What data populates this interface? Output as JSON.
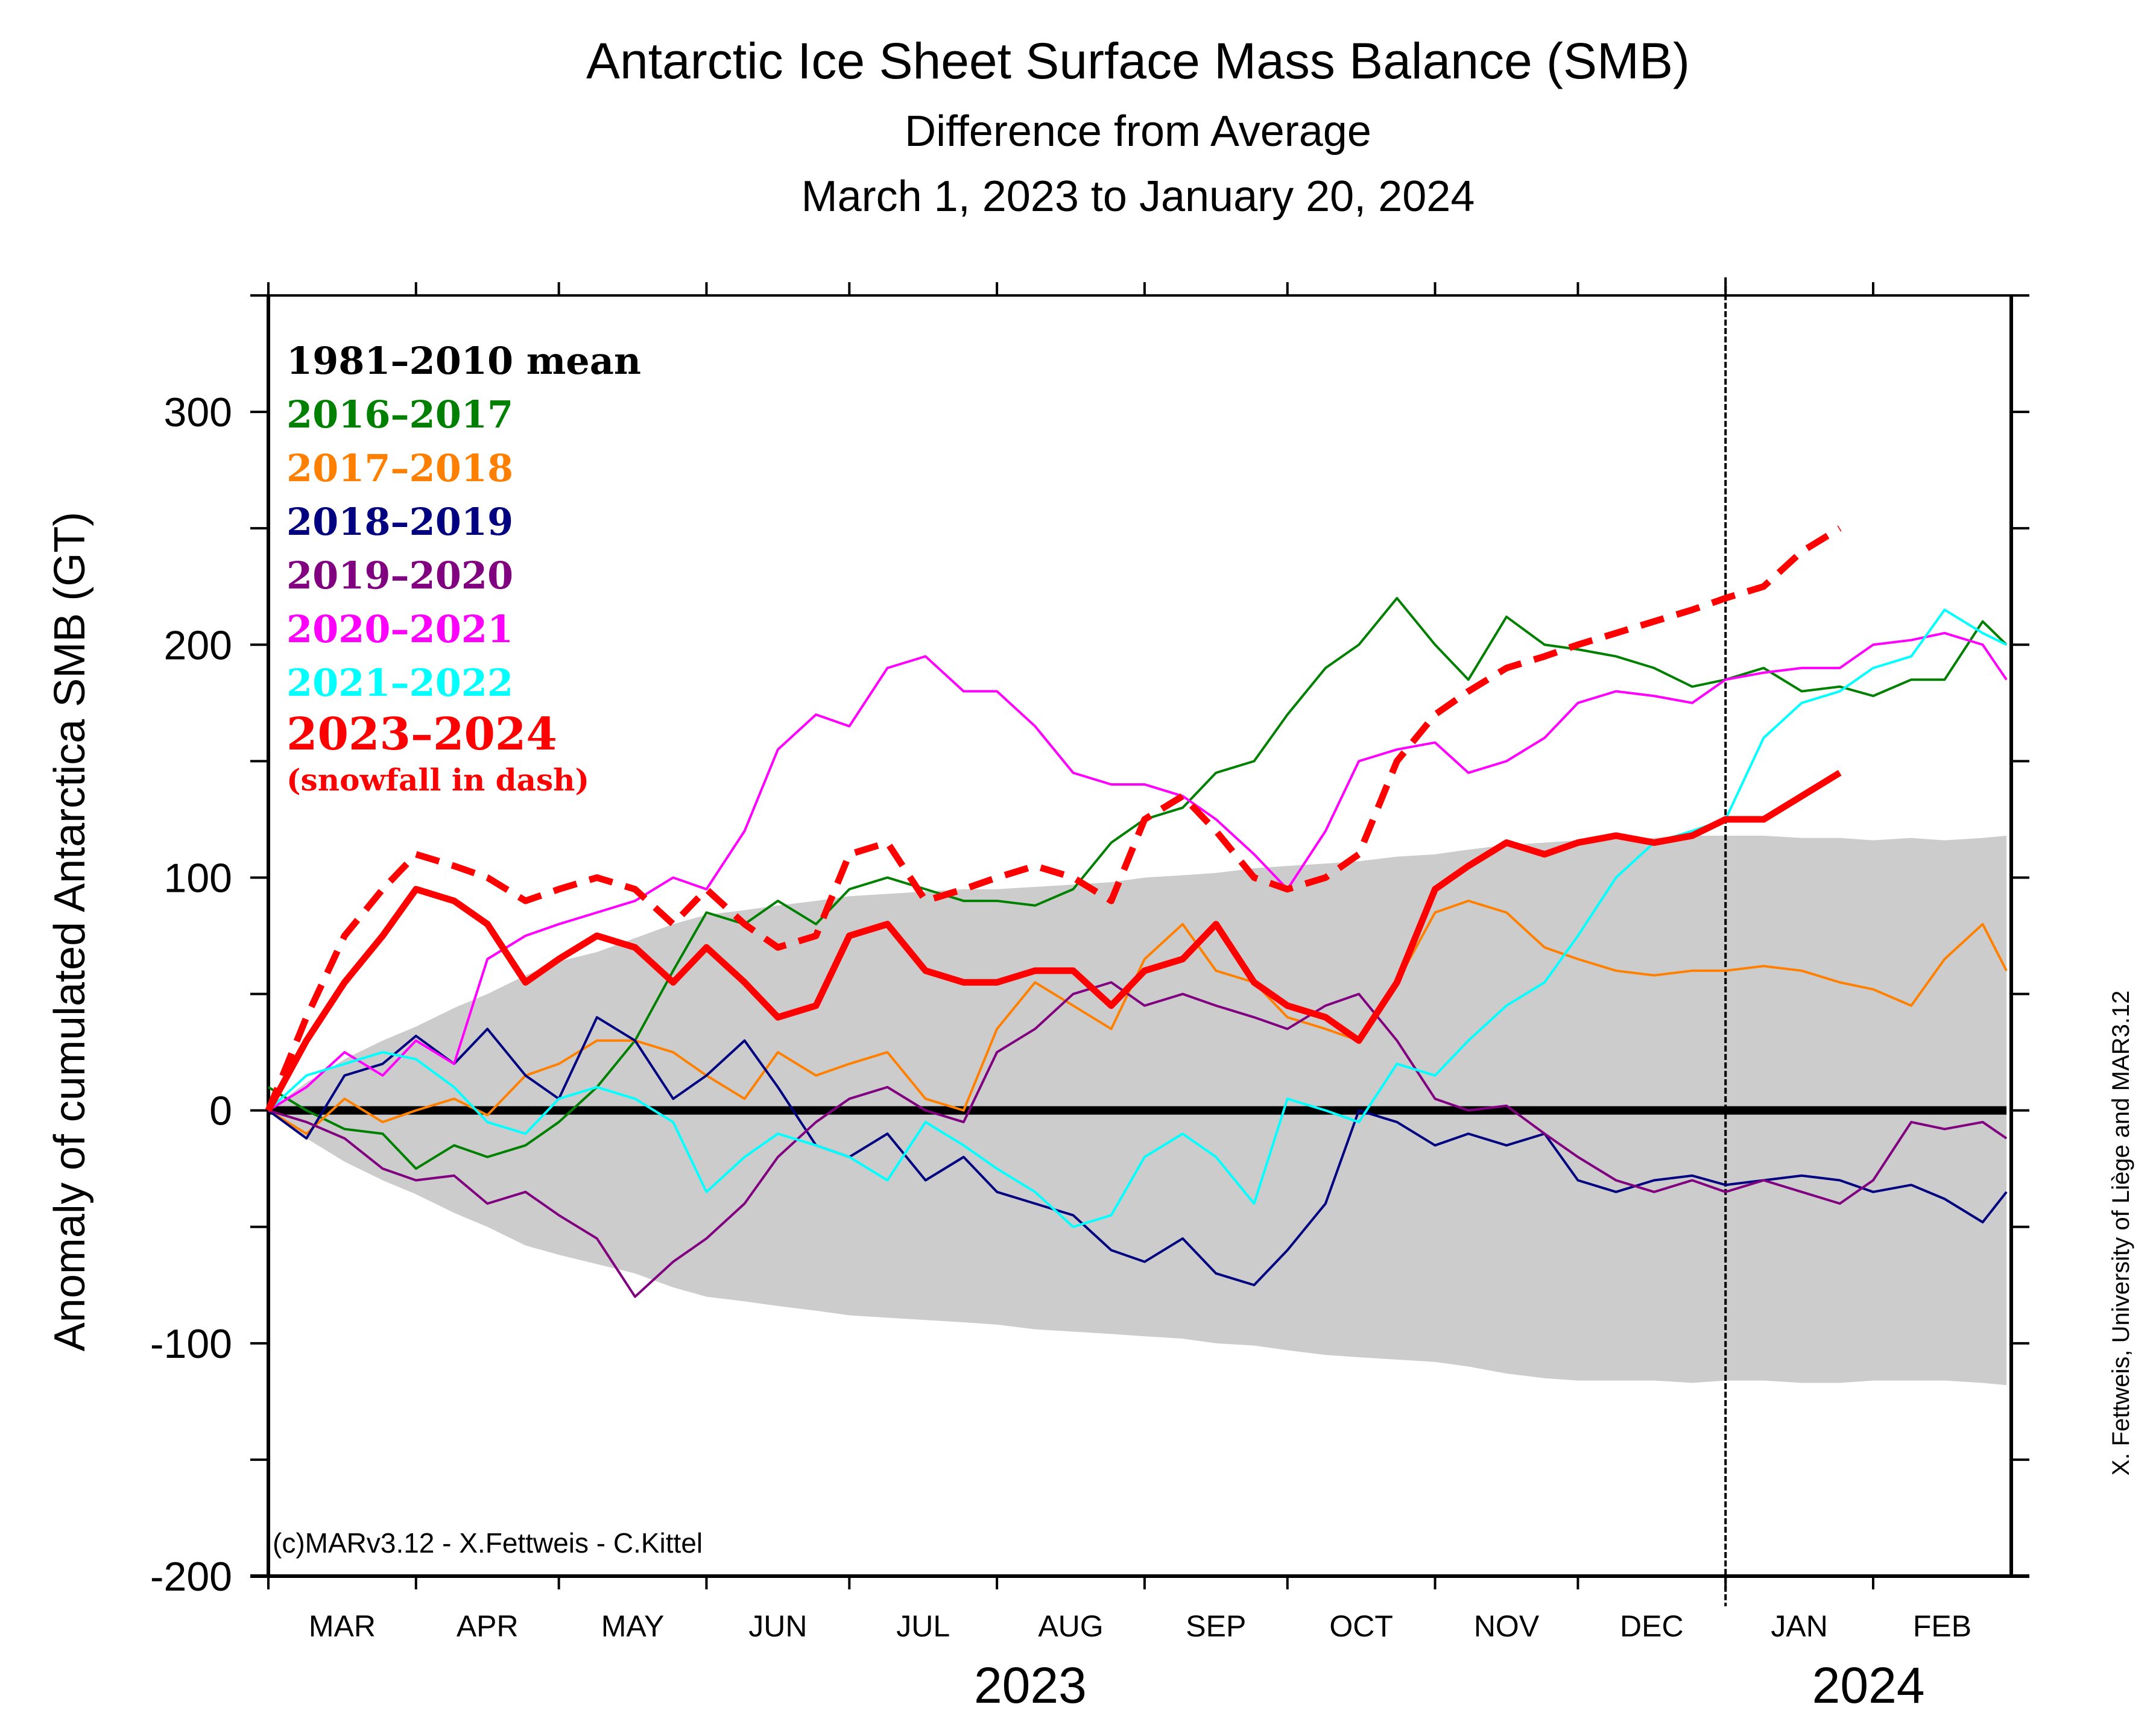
{
  "chart_data": {
    "type": "line",
    "title": "Antarctic Ice Sheet Surface Mass Balance (SMB)",
    "subtitle": "Difference from Average",
    "date_range": "March 1, 2023 to January 20, 2024",
    "xlabel": "",
    "ylabel": "Anomaly of cumulated Antarctica SMB (GT)",
    "ylim": [
      -200,
      350
    ],
    "yticks": [
      -200,
      -100,
      0,
      100,
      200,
      300
    ],
    "ytick_labels": [
      "-200",
      "-100",
      "0",
      "100",
      "200",
      "300"
    ],
    "xlim_days": [
      0,
      366
    ],
    "x_unit": "days since March 1",
    "month_ticks": [
      {
        "label": "MAR",
        "day": 0
      },
      {
        "label": "APR",
        "day": 31
      },
      {
        "label": "MAY",
        "day": 61
      },
      {
        "label": "JUN",
        "day": 92
      },
      {
        "label": "JUL",
        "day": 122
      },
      {
        "label": "AUG",
        "day": 153
      },
      {
        "label": "SEP",
        "day": 184
      },
      {
        "label": "OCT",
        "day": 214
      },
      {
        "label": "NOV",
        "day": 245
      },
      {
        "label": "DEC",
        "day": 275
      },
      {
        "label": "JAN",
        "day": 306
      },
      {
        "label": "FEB",
        "day": 337
      }
    ],
    "year_labels": [
      {
        "label": "2023",
        "center_day": 160
      },
      {
        "label": "2024",
        "center_day": 336
      }
    ],
    "year_divider_day": 306,
    "grid": false,
    "legend_position": "top-left",
    "x": [
      0,
      8,
      16,
      24,
      31,
      39,
      46,
      54,
      61,
      69,
      77,
      85,
      92,
      100,
      107,
      115,
      122,
      130,
      138,
      146,
      153,
      161,
      169,
      177,
      184,
      192,
      199,
      207,
      214,
      222,
      229,
      237,
      245,
      252,
      260,
      268,
      275,
      283,
      291,
      299,
      306,
      314,
      322,
      330,
      337,
      345,
      352,
      360,
      365
    ],
    "band": {
      "name": "variability envelope (1981-2010)",
      "color": "#cccccc",
      "upper": [
        0,
        12,
        22,
        30,
        36,
        44,
        50,
        58,
        64,
        68,
        74,
        80,
        84,
        86,
        88,
        90,
        92,
        93,
        94,
        95,
        95,
        96,
        97,
        98,
        100,
        101,
        102,
        104,
        105,
        106,
        107,
        109,
        110,
        112,
        114,
        115,
        116,
        117,
        117,
        118,
        118,
        118,
        117,
        117,
        116,
        117,
        116,
        117,
        118
      ],
      "lower": [
        0,
        -12,
        -22,
        -30,
        -36,
        -44,
        -50,
        -58,
        -62,
        -66,
        -70,
        -76,
        -80,
        -82,
        -84,
        -86,
        -88,
        -89,
        -90,
        -91,
        -92,
        -94,
        -95,
        -96,
        -97,
        -98,
        -100,
        -101,
        -103,
        -105,
        -106,
        -107,
        -108,
        -110,
        -113,
        -115,
        -116,
        -116,
        -116,
        -117,
        -116,
        -116,
        -117,
        -117,
        -116,
        -116,
        -116,
        -117,
        -118
      ]
    },
    "series": [
      {
        "name": "1981-2010 mean",
        "color": "#000000",
        "style": "solid-thick",
        "values": [
          0,
          0,
          0,
          0,
          0,
          0,
          0,
          0,
          0,
          0,
          0,
          0,
          0,
          0,
          0,
          0,
          0,
          0,
          0,
          0,
          0,
          0,
          0,
          0,
          0,
          0,
          0,
          0,
          0,
          0,
          0,
          0,
          0,
          0,
          0,
          0,
          0,
          0,
          0,
          0,
          0,
          0,
          0,
          0,
          0,
          0,
          0,
          0,
          0
        ]
      },
      {
        "name": "2016-2017",
        "color": "#008000",
        "style": "solid",
        "values": [
          10,
          0,
          -8,
          -10,
          -25,
          -15,
          -20,
          -15,
          -5,
          10,
          30,
          60,
          85,
          80,
          90,
          80,
          95,
          100,
          95,
          90,
          90,
          88,
          95,
          115,
          125,
          130,
          145,
          150,
          170,
          190,
          200,
          220,
          200,
          185,
          212,
          200,
          198,
          195,
          190,
          182,
          185,
          190,
          180,
          182,
          178,
          185,
          185,
          210,
          200
        ]
      },
      {
        "name": "2017-2018",
        "color": "#ff8000",
        "style": "solid",
        "values": [
          0,
          -10,
          5,
          -5,
          0,
          5,
          -2,
          15,
          20,
          30,
          30,
          25,
          15,
          5,
          25,
          15,
          20,
          25,
          5,
          0,
          35,
          55,
          45,
          35,
          65,
          80,
          60,
          55,
          40,
          35,
          30,
          55,
          85,
          90,
          85,
          70,
          65,
          60,
          58,
          60,
          60,
          62,
          60,
          55,
          52,
          45,
          65,
          80,
          60
        ]
      },
      {
        "name": "2018-2019",
        "color": "#000080",
        "style": "solid",
        "values": [
          0,
          -12,
          15,
          20,
          32,
          20,
          35,
          15,
          5,
          40,
          30,
          5,
          15,
          30,
          10,
          -15,
          -20,
          -10,
          -30,
          -20,
          -35,
          -40,
          -45,
          -60,
          -65,
          -55,
          -70,
          -75,
          -60,
          -40,
          0,
          -5,
          -15,
          -10,
          -15,
          -10,
          -30,
          -35,
          -30,
          -28,
          -32,
          -30,
          -28,
          -30,
          -35,
          -32,
          -38,
          -48,
          -35
        ]
      },
      {
        "name": "2019-2020",
        "color": "#800080",
        "style": "solid",
        "values": [
          0,
          -5,
          -12,
          -25,
          -30,
          -28,
          -40,
          -35,
          -45,
          -55,
          -80,
          -65,
          -55,
          -40,
          -20,
          -5,
          5,
          10,
          0,
          -5,
          25,
          35,
          50,
          55,
          45,
          50,
          45,
          40,
          35,
          45,
          50,
          30,
          5,
          0,
          2,
          -10,
          -20,
          -30,
          -35,
          -30,
          -35,
          -30,
          -35,
          -40,
          -30,
          -5,
          -8,
          -5,
          -12
        ]
      },
      {
        "name": "2020-2021",
        "color": "#ff00ff",
        "style": "solid",
        "values": [
          0,
          10,
          25,
          15,
          30,
          20,
          65,
          75,
          80,
          85,
          90,
          100,
          95,
          120,
          155,
          170,
          165,
          190,
          195,
          180,
          180,
          165,
          145,
          140,
          140,
          135,
          125,
          110,
          95,
          120,
          150,
          155,
          158,
          145,
          150,
          160,
          175,
          180,
          178,
          175,
          185,
          188,
          190,
          190,
          200,
          202,
          205,
          200,
          185
        ]
      },
      {
        "name": "2021-2022",
        "color": "#00ffff",
        "style": "solid",
        "values": [
          0,
          15,
          20,
          25,
          22,
          10,
          -5,
          -10,
          5,
          10,
          5,
          -5,
          -35,
          -20,
          -10,
          -15,
          -20,
          -30,
          -5,
          -15,
          -25,
          -35,
          -50,
          -45,
          -20,
          -10,
          -20,
          -40,
          5,
          0,
          -5,
          20,
          15,
          30,
          45,
          55,
          75,
          100,
          115,
          120,
          125,
          160,
          175,
          180,
          190,
          195,
          215,
          205,
          200
        ]
      },
      {
        "name": "2023-2024",
        "color": "#ff0000",
        "style": "solid-thick",
        "values": [
          0,
          30,
          55,
          75,
          95,
          90,
          80,
          55,
          65,
          75,
          70,
          55,
          70,
          55,
          40,
          45,
          75,
          80,
          60,
          55,
          55,
          60,
          60,
          45,
          60,
          65,
          80,
          55,
          45,
          40,
          30,
          55,
          95,
          105,
          115,
          110,
          115,
          118,
          115,
          118,
          125,
          125,
          135,
          145,
          null,
          null,
          null,
          null,
          null
        ]
      },
      {
        "name": "2023-2024 snowfall",
        "color": "#ff0000",
        "style": "dashed-thick",
        "values": [
          0,
          40,
          75,
          95,
          110,
          105,
          100,
          90,
          95,
          100,
          95,
          80,
          95,
          80,
          70,
          75,
          110,
          115,
          90,
          95,
          100,
          105,
          100,
          90,
          125,
          135,
          120,
          100,
          95,
          100,
          110,
          150,
          170,
          180,
          190,
          195,
          200,
          205,
          210,
          215,
          220,
          225,
          240,
          250,
          null,
          null,
          null,
          null,
          null
        ]
      }
    ],
    "legend": [
      {
        "label": "1981–2010  mean",
        "color": "#000000"
      },
      {
        "label": "2016–2017",
        "color": "#008000"
      },
      {
        "label": "2017–2018",
        "color": "#ff8000"
      },
      {
        "label": "2018–2019",
        "color": "#000080"
      },
      {
        "label": "2019–2020",
        "color": "#800080"
      },
      {
        "label": "2020–2021",
        "color": "#ff00ff"
      },
      {
        "label": "2021–2022",
        "color": "#00ffff"
      },
      {
        "label": "2023–2024",
        "color": "#ff0000"
      },
      {
        "label": "(snowfall in dash)",
        "color": "#ff0000"
      }
    ],
    "annotations": {
      "copyright": "(c)MARv3.12 - X.Fettweis - C.Kittel",
      "credit": "X. Fettweis, University of Liège and MAR3.12"
    }
  }
}
